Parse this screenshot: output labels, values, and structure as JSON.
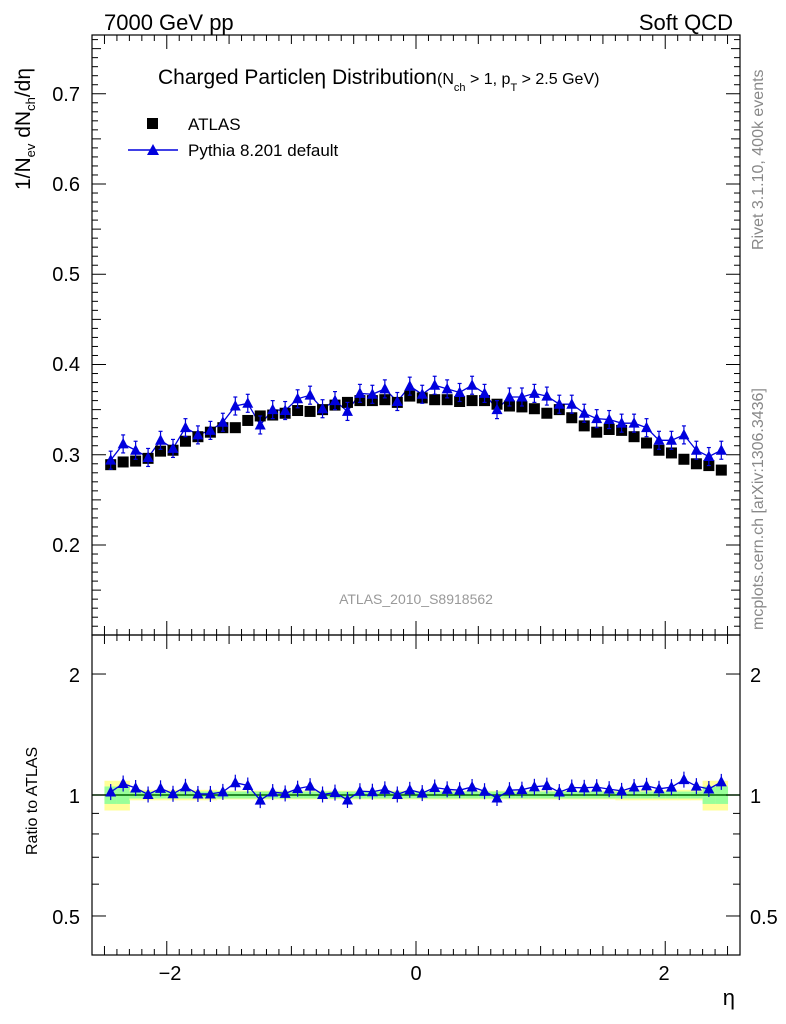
{
  "header": {
    "left": "7000 GeV pp",
    "right": "Soft QCD"
  },
  "title": {
    "main_a": "Charged Particle",
    "main_eta": "η",
    "main_b": " Distribution",
    "cond_open": "(N",
    "cond_sub1": "ch",
    "cond_mid": " > 1, p",
    "cond_sub2": "T",
    "cond_close": " > 2.5 GeV)"
  },
  "side_labels": {
    "rivet": "Rivet 3.1.10,  400k events",
    "mcplots": "mcplots.cern.ch [arXiv:1306.3436]"
  },
  "analysis_id": "ATLAS_2010_S8918562",
  "axes": {
    "ylabel_main": "1/N_ev dN_ch/dη",
    "ylabel_main_parts": {
      "a": "1/N",
      "sub1": "ev",
      "b": " dN",
      "sub2": "ch",
      "c": "/dη"
    },
    "ylabel_ratio": "Ratio to ATLAS",
    "xlabel": "η",
    "x_ticks": [
      "−2",
      "0",
      "2"
    ],
    "y_ticks_main": [
      "0.2",
      "0.3",
      "0.4",
      "0.5",
      "0.6",
      "0.7"
    ],
    "y_ticks_ratio": [
      "0.5",
      "1",
      "2"
    ]
  },
  "legend": {
    "atlas": "ATLAS",
    "pythia": "Pythia 8.201 default"
  },
  "colors": {
    "data": "#000000",
    "mc": "#0000dd",
    "band_outer": "#ffff99",
    "band_inner": "#99ff99",
    "ratio_line": "#006600"
  },
  "chart_data": [
    {
      "type": "scatter",
      "panel": "main",
      "xlabel": "η",
      "ylabel": "1/N_ev dN_ch/dη",
      "xlim": [
        -2.5,
        2.5
      ],
      "ylim": [
        0.1,
        0.77
      ],
      "legend_position": "top-left",
      "grid": false,
      "x": [
        -2.45,
        -2.35,
        -2.25,
        -2.15,
        -2.05,
        -1.95,
        -1.85,
        -1.75,
        -1.65,
        -1.55,
        -1.45,
        -1.35,
        -1.25,
        -1.15,
        -1.05,
        -0.95,
        -0.85,
        -0.75,
        -0.65,
        -0.55,
        -0.45,
        -0.35,
        -0.25,
        -0.15,
        -0.05,
        0.05,
        0.15,
        0.25,
        0.35,
        0.45,
        0.55,
        0.65,
        0.75,
        0.85,
        0.95,
        1.05,
        1.15,
        1.25,
        1.35,
        1.45,
        1.55,
        1.65,
        1.75,
        1.85,
        1.95,
        2.05,
        2.15,
        2.25,
        2.35,
        2.45
      ],
      "series": [
        {
          "name": "ATLAS",
          "marker": "square",
          "y": [
            0.289,
            0.292,
            0.293,
            0.296,
            0.304,
            0.305,
            0.315,
            0.32,
            0.325,
            0.33,
            0.33,
            0.338,
            0.343,
            0.344,
            0.346,
            0.349,
            0.348,
            0.35,
            0.355,
            0.358,
            0.36,
            0.36,
            0.361,
            0.358,
            0.365,
            0.363,
            0.361,
            0.361,
            0.359,
            0.36,
            0.36,
            0.356,
            0.354,
            0.353,
            0.351,
            0.346,
            0.35,
            0.341,
            0.332,
            0.325,
            0.328,
            0.327,
            0.32,
            0.313,
            0.305,
            0.302,
            0.295,
            0.29,
            0.288,
            0.283
          ]
        },
        {
          "name": "Pythia 8.201 default",
          "marker": "triangle",
          "y": [
            0.294,
            0.312,
            0.305,
            0.297,
            0.316,
            0.307,
            0.33,
            0.322,
            0.327,
            0.336,
            0.354,
            0.357,
            0.333,
            0.35,
            0.349,
            0.362,
            0.366,
            0.351,
            0.36,
            0.348,
            0.368,
            0.367,
            0.373,
            0.359,
            0.376,
            0.367,
            0.377,
            0.373,
            0.369,
            0.377,
            0.368,
            0.35,
            0.364,
            0.364,
            0.368,
            0.365,
            0.356,
            0.356,
            0.346,
            0.34,
            0.339,
            0.335,
            0.335,
            0.33,
            0.316,
            0.316,
            0.322,
            0.305,
            0.298,
            0.305
          ]
        }
      ]
    },
    {
      "type": "scatter",
      "panel": "ratio",
      "ylabel": "Ratio to ATLAS",
      "xlabel": "η",
      "xlim": [
        -2.5,
        2.5
      ],
      "ylim": [
        0.4,
        2.4
      ],
      "y_scale": "log",
      "reference": 1.0,
      "series": [
        {
          "name": "Pythia 8.201 default",
          "marker": "triangle",
          "y": [
            1.017,
            1.068,
            1.041,
            1.003,
            1.039,
            1.007,
            1.048,
            1.006,
            1.006,
            1.018,
            1.073,
            1.056,
            0.971,
            1.017,
            1.009,
            1.037,
            1.052,
            1.003,
            1.014,
            0.972,
            1.022,
            1.019,
            1.033,
            1.003,
            1.03,
            1.011,
            1.044,
            1.033,
            1.028,
            1.047,
            1.022,
            0.983,
            1.028,
            1.031,
            1.048,
            1.055,
            1.017,
            1.044,
            1.042,
            1.046,
            1.034,
            1.024,
            1.047,
            1.054,
            1.036,
            1.046,
            1.092,
            1.052,
            1.035,
            1.078
          ]
        }
      ]
    }
  ]
}
